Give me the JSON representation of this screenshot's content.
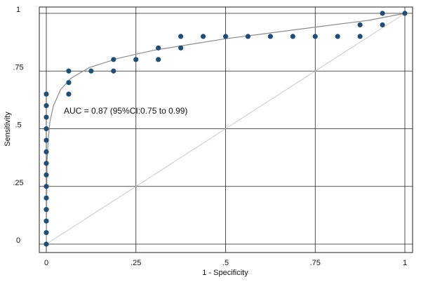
{
  "chart_data": {
    "type": "scatter",
    "xlabel": "1 - Specificity",
    "ylabel": "Sensitivity",
    "xlim": [
      0,
      1
    ],
    "ylim": [
      0,
      1
    ],
    "grid": true,
    "x_ticks": [
      {
        "value": 0,
        "label": "0"
      },
      {
        "value": 0.25,
        "label": ".25"
      },
      {
        "value": 0.5,
        "label": ".5"
      },
      {
        "value": 0.75,
        "label": ".75"
      },
      {
        "value": 1,
        "label": "1"
      }
    ],
    "y_ticks": [
      {
        "value": 0,
        "label": "0"
      },
      {
        "value": 0.25,
        "label": ".25"
      },
      {
        "value": 0.5,
        "label": ".5"
      },
      {
        "value": 0.75,
        "label": ".75"
      },
      {
        "value": 1,
        "label": "1"
      }
    ],
    "annotation": "AUC = 0.87 (95%CI:0.75 to 0.99)",
    "colors": {
      "points": "#1f4e79",
      "fitted_curve": "#8c8c8c",
      "reference_line": "#c8c8c8",
      "grid": "#222222"
    },
    "series": [
      {
        "values": [
          {
            "x": 0,
            "y": 0
          },
          {
            "x": 0,
            "y": 0.05
          },
          {
            "x": 0,
            "y": 0.1
          },
          {
            "x": 0,
            "y": 0.15
          },
          {
            "x": 0,
            "y": 0.2
          },
          {
            "x": 0,
            "y": 0.25
          },
          {
            "x": 0,
            "y": 0.3
          },
          {
            "x": 0,
            "y": 0.35
          },
          {
            "x": 0,
            "y": 0.4
          },
          {
            "x": 0,
            "y": 0.45
          },
          {
            "x": 0,
            "y": 0.5
          },
          {
            "x": 0,
            "y": 0.55
          },
          {
            "x": 0,
            "y": 0.6
          },
          {
            "x": 0,
            "y": 0.65
          },
          {
            "x": 0.0625,
            "y": 0.65
          },
          {
            "x": 0.0625,
            "y": 0.7
          },
          {
            "x": 0.0625,
            "y": 0.75
          },
          {
            "x": 0.125,
            "y": 0.75
          },
          {
            "x": 0.1875,
            "y": 0.75
          },
          {
            "x": 0.1875,
            "y": 0.8
          },
          {
            "x": 0.25,
            "y": 0.8
          },
          {
            "x": 0.3125,
            "y": 0.8
          },
          {
            "x": 0.3125,
            "y": 0.85
          },
          {
            "x": 0.375,
            "y": 0.85
          },
          {
            "x": 0.375,
            "y": 0.9
          },
          {
            "x": 0.4375,
            "y": 0.9
          },
          {
            "x": 0.5,
            "y": 0.9
          },
          {
            "x": 0.5625,
            "y": 0.9
          },
          {
            "x": 0.625,
            "y": 0.9
          },
          {
            "x": 0.6875,
            "y": 0.9
          },
          {
            "x": 0.75,
            "y": 0.9
          },
          {
            "x": 0.8125,
            "y": 0.9
          },
          {
            "x": 0.875,
            "y": 0.9
          },
          {
            "x": 0.875,
            "y": 0.95
          },
          {
            "x": 0.9375,
            "y": 0.95
          },
          {
            "x": 0.9375,
            "y": 1
          },
          {
            "x": 1,
            "y": 1
          }
        ]
      }
    ],
    "fitted_curve": {
      "type": "binormal",
      "points": [
        {
          "x": 0,
          "y": 0
        },
        {
          "x": 0.002,
          "y": 0.36
        },
        {
          "x": 0.005,
          "y": 0.45
        },
        {
          "x": 0.01,
          "y": 0.53
        },
        {
          "x": 0.02,
          "y": 0.6
        },
        {
          "x": 0.04,
          "y": 0.67
        },
        {
          "x": 0.07,
          "y": 0.72
        },
        {
          "x": 0.12,
          "y": 0.765
        },
        {
          "x": 0.2,
          "y": 0.805
        },
        {
          "x": 0.3,
          "y": 0.84
        },
        {
          "x": 0.4,
          "y": 0.865
        },
        {
          "x": 0.5,
          "y": 0.89
        },
        {
          "x": 0.6,
          "y": 0.91
        },
        {
          "x": 0.7,
          "y": 0.93
        },
        {
          "x": 0.8,
          "y": 0.95
        },
        {
          "x": 0.9,
          "y": 0.97
        },
        {
          "x": 1,
          "y": 1
        }
      ]
    },
    "reference_line": {
      "from": {
        "x": 0,
        "y": 0
      },
      "to": {
        "x": 1,
        "y": 1
      }
    }
  }
}
